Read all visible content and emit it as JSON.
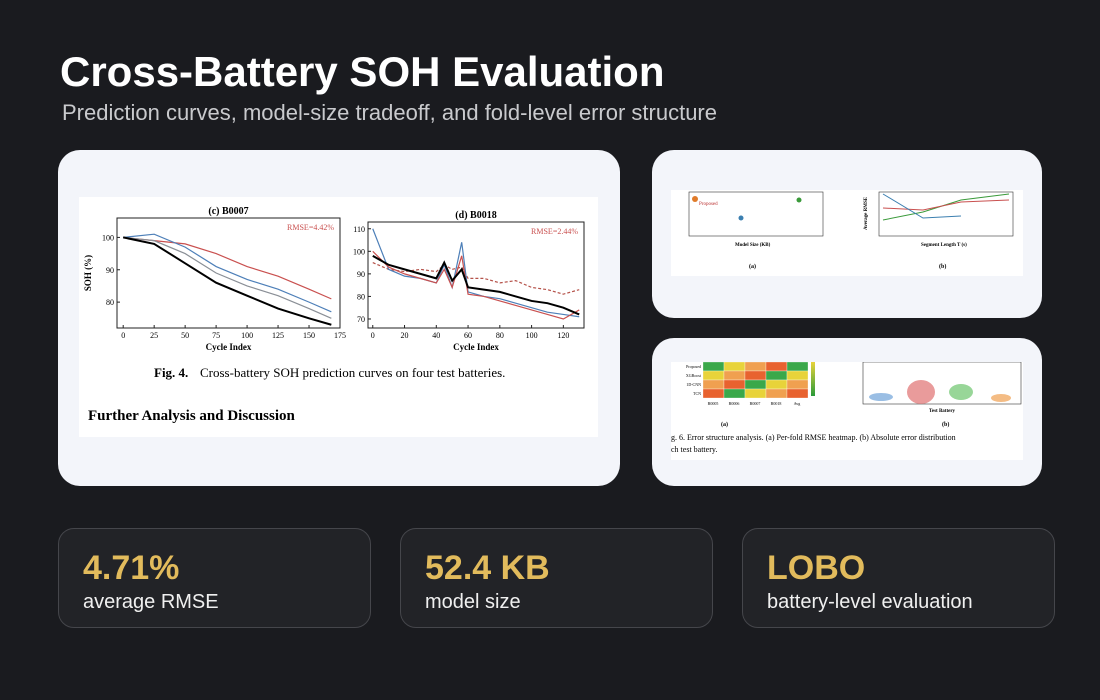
{
  "header": {
    "title": "Cross-Battery SOH Evaluation",
    "subtitle": "Prediction curves, model-size tradeoff, and fold-level error structure"
  },
  "figure_main": {
    "panels": [
      {
        "title": "(c) B0007",
        "annotation": "RMSE=4.42%",
        "ylabel": "SOH (%)",
        "xlabel": "Cycle Index",
        "x": [
          0,
          25,
          50,
          75,
          100,
          125,
          150,
          168
        ],
        "xlim": [
          -5,
          175
        ],
        "xticks": [
          0,
          25,
          50,
          75,
          100,
          125,
          150,
          175
        ],
        "ylim": [
          72,
          106
        ],
        "yticks": [
          80,
          90,
          100
        ],
        "series": [
          {
            "color": "#c9504f",
            "dash": false,
            "values": [
              100,
              99,
              98,
              95,
              91,
              88,
              84,
              81
            ]
          },
          {
            "color": "#4d7fb8",
            "dash": false,
            "values": [
              100,
              101,
              97,
              91,
              87,
              84,
              80,
              77
            ]
          },
          {
            "color": "#8a8f96",
            "dash": false,
            "values": [
              100,
              99,
              95,
              89,
              85,
              82,
              78,
              75
            ]
          },
          {
            "color": "#000000",
            "dash": false,
            "values": [
              100,
              98,
              92,
              86,
              82,
              78,
              75,
              73
            ]
          }
        ]
      },
      {
        "title": "(d) B0018",
        "annotation": "RMSE=2.44%",
        "xlabel": "Cycle Index",
        "x": [
          0,
          10,
          20,
          30,
          40,
          45,
          50,
          56,
          60,
          70,
          80,
          90,
          100,
          110,
          120,
          130
        ],
        "xlim": [
          -3,
          133
        ],
        "xticks": [
          0,
          20,
          40,
          60,
          80,
          100,
          120
        ],
        "ylim": [
          66,
          113
        ],
        "yticks": [
          70,
          80,
          90,
          100,
          110
        ],
        "series": [
          {
            "color": "#b5524a",
            "dash": true,
            "values": [
              95,
              92,
              91,
              92,
              91,
              94,
              92,
              93,
              88,
              88,
              86,
              87,
              84,
              83,
              81,
              83
            ]
          },
          {
            "color": "#4d7fb8",
            "dash": false,
            "values": [
              110,
              92,
              89,
              88,
              86,
              94,
              84,
              104,
              82,
              80,
              79,
              77,
              75,
              73,
              72,
              71
            ]
          },
          {
            "color": "#c9504f",
            "dash": false,
            "values": [
              100,
              93,
              90,
              88,
              86,
              92,
              84,
              98,
              81,
              80,
              78,
              76,
              74,
              72,
              70,
              74
            ]
          },
          {
            "color": "#000000",
            "dash": false,
            "values": [
              98,
              94,
              92,
              90,
              88,
              95,
              87,
              92,
              84,
              83,
              82,
              80,
              78,
              77,
              75,
              72
            ]
          }
        ]
      }
    ],
    "caption_label": "Fig. 4.",
    "caption": "Cross-battery SOH prediction curves on four test batteries.",
    "heading": "Further Analysis and Discussion"
  },
  "figure_tradeoff": {
    "label_a": "(a)",
    "label_b": "(b)",
    "xlabel_a": "Model Size (KB)",
    "ylabel_b": "Average RMSE",
    "xlabel_b": "Segment Length T (s)",
    "point": "Proposed"
  },
  "figure_error": {
    "rows": [
      "Proposed",
      "XGBoost",
      "1D-CNN",
      "TCN"
    ],
    "columns": [
      "B0005",
      "B0006",
      "B0007",
      "B0018",
      "Avg"
    ],
    "label_a": "(a)",
    "label_b": "(b)",
    "xlabel_b": "Test Battery",
    "caption_1": "g. 6. Error structure analysis. (a) Per-fold RMSE heatmap. (b) Absolute error distribution",
    "caption_2": "ch test battery."
  },
  "stats": [
    {
      "value": "4.71%",
      "label": "average RMSE"
    },
    {
      "value": "52.4 KB",
      "label": "model size"
    },
    {
      "value": "LOBO",
      "label": "battery-level evaluation"
    }
  ]
}
